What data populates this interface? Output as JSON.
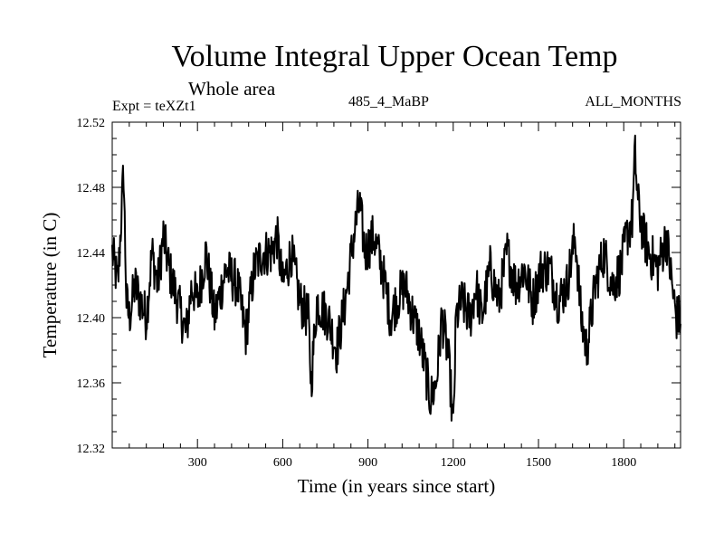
{
  "chart_data": {
    "type": "line",
    "title": "Volume Integral Upper Ocean Temp",
    "subtitle": "Whole area",
    "expt_label": "Expt = teXZt1",
    "run_label": "485_4_MaBP",
    "months_label": "ALL_MONTHS",
    "xlabel": "Time (in years since start)",
    "ylabel": "Temperature (in C)",
    "xlim": [
      0,
      2000
    ],
    "ylim": [
      12.32,
      12.52
    ],
    "xticks": [
      300,
      600,
      900,
      1200,
      1500,
      1800
    ],
    "xtick_labels": [
      "300",
      "600",
      "900",
      "1200",
      "1500",
      "1800"
    ],
    "yticks": [
      12.32,
      12.36,
      12.4,
      12.44,
      12.48,
      12.52
    ],
    "ytick_labels": [
      "12.32",
      "12.36",
      "12.40",
      "12.44",
      "12.48",
      "12.52"
    ],
    "series": [
      {
        "name": "Volume Integral Upper Ocean Temp",
        "color": "#000000",
        "x": [
          0,
          20,
          40,
          50,
          60,
          80,
          100,
          120,
          140,
          160,
          180,
          200,
          230,
          260,
          280,
          300,
          330,
          360,
          400,
          440,
          470,
          500,
          530,
          560,
          580,
          600,
          630,
          660,
          690,
          700,
          720,
          760,
          790,
          820,
          850,
          870,
          890,
          920,
          950,
          980,
          1000,
          1030,
          1060,
          1080,
          1100,
          1120,
          1140,
          1160,
          1180,
          1190,
          1200,
          1210,
          1230,
          1260,
          1280,
          1300,
          1330,
          1360,
          1390,
          1420,
          1450,
          1480,
          1510,
          1540,
          1570,
          1600,
          1630,
          1650,
          1670,
          1700,
          1730,
          1760,
          1790,
          1810,
          1830,
          1840,
          1850,
          1870,
          1890,
          1920,
          1950,
          1970,
          1985,
          2000
        ],
        "values": [
          12.44,
          12.42,
          12.49,
          12.41,
          12.4,
          12.42,
          12.41,
          12.4,
          12.44,
          12.42,
          12.45,
          12.43,
          12.41,
          12.39,
          12.42,
          12.41,
          12.44,
          12.4,
          12.43,
          12.42,
          12.39,
          12.43,
          12.44,
          12.44,
          12.45,
          12.42,
          12.44,
          12.41,
          12.4,
          12.36,
          12.41,
          12.4,
          12.38,
          12.41,
          12.45,
          12.47,
          12.44,
          12.45,
          12.43,
          12.4,
          12.41,
          12.42,
          12.4,
          12.39,
          12.37,
          12.35,
          12.36,
          12.4,
          12.38,
          12.36,
          12.33,
          12.4,
          12.41,
          12.4,
          12.42,
          12.4,
          12.43,
          12.41,
          12.44,
          12.42,
          12.43,
          12.41,
          12.43,
          12.43,
          12.41,
          12.42,
          12.45,
          12.4,
          12.38,
          12.42,
          12.44,
          12.42,
          12.43,
          12.45,
          12.46,
          12.5,
          12.47,
          12.45,
          12.44,
          12.43,
          12.45,
          12.42,
          12.4,
          12.4
        ]
      }
    ]
  }
}
